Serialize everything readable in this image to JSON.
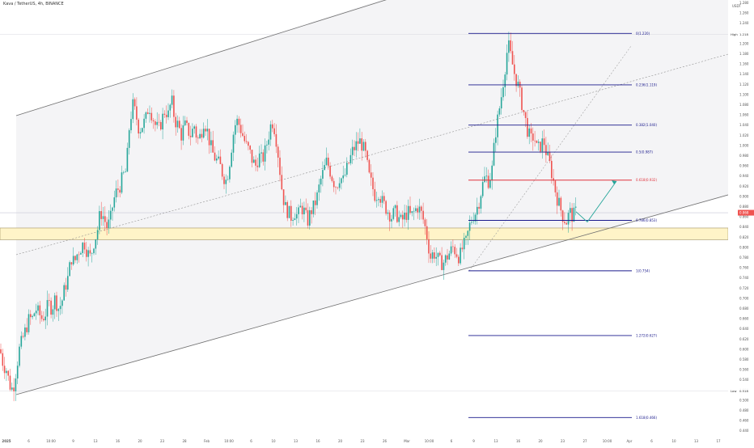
{
  "header": {
    "title": "Kava / TetherUS, 4h, BINANCE"
  },
  "price_axis": {
    "currency": "USDT",
    "ticks": [
      "1.280",
      "1.260",
      "1.240",
      "1.220",
      "1.200",
      "1.180",
      "1.160",
      "1.140",
      "1.120",
      "1.100",
      "1.080",
      "1.060",
      "1.040",
      "1.020",
      "1.000",
      "0.980",
      "0.960",
      "0.940",
      "0.920",
      "0.900",
      "0.880",
      "0.860",
      "0.840",
      "0.820",
      "0.800",
      "0.780",
      "0.760",
      "0.740",
      "0.720",
      "0.700",
      "0.680",
      "0.660",
      "0.640",
      "0.620",
      "0.600",
      "0.580",
      "0.560",
      "0.540",
      "0.520",
      "0.500",
      "0.480",
      "0.460",
      "0.440"
    ],
    "high_label": "High",
    "high_value": "1.218",
    "low_label": "Low",
    "low_value": "0.518",
    "last_price": "0.868"
  },
  "time_axis": {
    "ticks": [
      "2025",
      "6",
      "10:00",
      "9",
      "13",
      "16",
      "20",
      "23",
      "28",
      "Feb",
      "10:00",
      "6",
      "10",
      "13",
      "16",
      "20",
      "23",
      "26",
      "Mar",
      "10:00",
      "6",
      "9",
      "13",
      "16",
      "20",
      "23",
      "27",
      "10:00",
      "Apr",
      "6",
      "10",
      "13",
      "17"
    ]
  },
  "fib_levels": [
    {
      "label": "0(1.220)",
      "price": 1.22,
      "color": "#1a1a8c"
    },
    {
      "label": "0.236(1.119)",
      "price": 1.119,
      "color": "#1a1a8c"
    },
    {
      "label": "0.382(1.040)",
      "price": 1.04,
      "color": "#1a1a8c"
    },
    {
      "label": "0.5(0.987)",
      "price": 0.987,
      "color": "#1a1a8c"
    },
    {
      "label": "0.618(0.932)",
      "price": 0.932,
      "color": "#e0323c"
    },
    {
      "label": "0.786(0.853)",
      "price": 0.853,
      "color": "#1a1a8c"
    },
    {
      "label": "1(0.754)",
      "price": 0.754,
      "color": "#1a1a8c"
    },
    {
      "label": "1.272(0.627)",
      "price": 0.627,
      "color": "#1a1a8c"
    },
    {
      "label": "1.618(0.466)",
      "price": 0.466,
      "color": "#1a1a8c"
    }
  ],
  "chart_data": {
    "type": "candlestick",
    "symbol": "Kava / TetherUS",
    "interval": "4h",
    "exchange": "BINANCE",
    "ylim": [
      0.44,
      1.29
    ],
    "grid": false,
    "high": 1.218,
    "low": 0.518,
    "close_path": [
      [
        0,
        0.6
      ],
      [
        4,
        0.57
      ],
      [
        8,
        0.56
      ],
      [
        12,
        0.53
      ],
      [
        16,
        0.52
      ],
      [
        20,
        0.56
      ],
      [
        24,
        0.6
      ],
      [
        28,
        0.62
      ],
      [
        32,
        0.64
      ],
      [
        36,
        0.66
      ],
      [
        40,
        0.66
      ],
      [
        44,
        0.68
      ],
      [
        48,
        0.67
      ],
      [
        52,
        0.66
      ],
      [
        56,
        0.67
      ],
      [
        60,
        0.69
      ],
      [
        64,
        0.68
      ],
      [
        68,
        0.7
      ],
      [
        72,
        0.68
      ],
      [
        76,
        0.69
      ],
      [
        80,
        0.72
      ],
      [
        84,
        0.74
      ],
      [
        88,
        0.78
      ],
      [
        92,
        0.77
      ],
      [
        96,
        0.79
      ],
      [
        100,
        0.8
      ],
      [
        104,
        0.81
      ],
      [
        108,
        0.79
      ],
      [
        112,
        0.78
      ],
      [
        116,
        0.81
      ],
      [
        120,
        0.83
      ],
      [
        124,
        0.87
      ],
      [
        128,
        0.86
      ],
      [
        132,
        0.84
      ],
      [
        136,
        0.85
      ],
      [
        140,
        0.89
      ],
      [
        144,
        0.91
      ],
      [
        148,
        0.92
      ],
      [
        152,
        0.94
      ],
      [
        156,
        0.95
      ],
      [
        160,
        1.04
      ],
      [
        164,
        1.08
      ],
      [
        168,
        1.06
      ],
      [
        172,
        1.03
      ],
      [
        176,
        1.04
      ],
      [
        180,
        1.05
      ],
      [
        184,
        1.08
      ],
      [
        188,
        1.06
      ],
      [
        192,
        1.04
      ],
      [
        196,
        1.03
      ],
      [
        200,
        1.05
      ],
      [
        204,
        1.07
      ],
      [
        208,
        1.06
      ],
      [
        212,
        1.09
      ],
      [
        216,
        1.05
      ],
      [
        220,
        1.04
      ],
      [
        224,
        1.02
      ],
      [
        228,
        1.04
      ],
      [
        232,
        1.03
      ],
      [
        236,
        1.02
      ],
      [
        240,
        1.04
      ],
      [
        244,
        1.01
      ],
      [
        248,
        1.02
      ],
      [
        252,
        1.05
      ],
      [
        256,
        1.03
      ],
      [
        260,
        1.0
      ],
      [
        264,
        0.98
      ],
      [
        268,
        0.97
      ],
      [
        272,
        0.96
      ],
      [
        276,
        0.94
      ],
      [
        280,
        0.93
      ],
      [
        284,
        0.97
      ],
      [
        288,
        1.02
      ],
      [
        292,
        1.05
      ],
      [
        296,
        1.04
      ],
      [
        300,
        1.02
      ],
      [
        304,
        1.0
      ],
      [
        308,
        0.99
      ],
      [
        312,
        0.97
      ],
      [
        316,
        0.96
      ],
      [
        320,
        0.98
      ],
      [
        324,
        0.97
      ],
      [
        328,
        0.99
      ],
      [
        332,
        1.02
      ],
      [
        336,
        1.05
      ],
      [
        340,
        1.03
      ],
      [
        344,
        0.98
      ],
      [
        348,
        0.92
      ],
      [
        352,
        0.88
      ],
      [
        356,
        0.87
      ],
      [
        360,
        0.86
      ],
      [
        364,
        0.87
      ],
      [
        368,
        0.86
      ],
      [
        372,
        0.88
      ],
      [
        376,
        0.87
      ],
      [
        380,
        0.85
      ],
      [
        384,
        0.87
      ],
      [
        388,
        0.88
      ],
      [
        392,
        0.9
      ],
      [
        396,
        0.93
      ],
      [
        400,
        0.95
      ],
      [
        404,
        0.97
      ],
      [
        408,
        0.95
      ],
      [
        412,
        0.93
      ],
      [
        416,
        0.92
      ],
      [
        420,
        0.94
      ],
      [
        424,
        0.93
      ],
      [
        428,
        0.95
      ],
      [
        432,
        0.97
      ],
      [
        436,
        0.99
      ],
      [
        440,
        1.0
      ],
      [
        444,
        1.01
      ],
      [
        448,
        1.0
      ],
      [
        452,
        0.98
      ],
      [
        456,
        0.94
      ],
      [
        460,
        0.92
      ],
      [
        464,
        0.9
      ],
      [
        468,
        0.91
      ],
      [
        472,
        0.89
      ],
      [
        476,
        0.88
      ],
      [
        480,
        0.87
      ],
      [
        484,
        0.86
      ],
      [
        488,
        0.87
      ],
      [
        492,
        0.86
      ],
      [
        496,
        0.85
      ],
      [
        500,
        0.86
      ],
      [
        504,
        0.87
      ],
      [
        508,
        0.86
      ],
      [
        512,
        0.87
      ],
      [
        516,
        0.88
      ],
      [
        520,
        0.87
      ],
      [
        524,
        0.85
      ],
      [
        528,
        0.82
      ],
      [
        532,
        0.78
      ],
      [
        536,
        0.79
      ],
      [
        540,
        0.78
      ],
      [
        544,
        0.77
      ],
      [
        548,
        0.77
      ],
      [
        552,
        0.78
      ],
      [
        556,
        0.79
      ],
      [
        560,
        0.8
      ],
      [
        564,
        0.79
      ],
      [
        568,
        0.78
      ],
      [
        572,
        0.8
      ],
      [
        576,
        0.81
      ],
      [
        580,
        0.84
      ],
      [
        584,
        0.86
      ],
      [
        588,
        0.87
      ],
      [
        592,
        0.89
      ],
      [
        596,
        0.92
      ],
      [
        600,
        0.94
      ],
      [
        604,
        0.93
      ],
      [
        608,
        0.95
      ],
      [
        612,
        1.02
      ],
      [
        616,
        1.06
      ],
      [
        620,
        1.1
      ],
      [
        624,
        1.15
      ],
      [
        628,
        1.2
      ],
      [
        632,
        1.17
      ],
      [
        636,
        1.14
      ],
      [
        640,
        1.12
      ],
      [
        644,
        1.09
      ],
      [
        648,
        1.06
      ],
      [
        652,
        1.03
      ],
      [
        656,
        1.01
      ],
      [
        660,
        1.02
      ],
      [
        664,
        0.99
      ],
      [
        668,
        1.0
      ],
      [
        672,
        1.01
      ],
      [
        676,
        0.98
      ],
      [
        680,
        0.96
      ],
      [
        684,
        0.93
      ],
      [
        688,
        0.9
      ],
      [
        692,
        0.88
      ],
      [
        696,
        0.86
      ],
      [
        700,
        0.85
      ],
      [
        704,
        0.87
      ],
      [
        708,
        0.86
      ],
      [
        712,
        0.87
      ]
    ],
    "projection_path": [
      [
        712,
        0.87
      ],
      [
        726,
        0.85
      ],
      [
        762,
        0.93
      ]
    ],
    "support_zone": [
      0.815,
      0.838
    ],
    "annotations": [
      "ascending channel",
      "fibonacci retracement",
      "projection arrow"
    ]
  }
}
